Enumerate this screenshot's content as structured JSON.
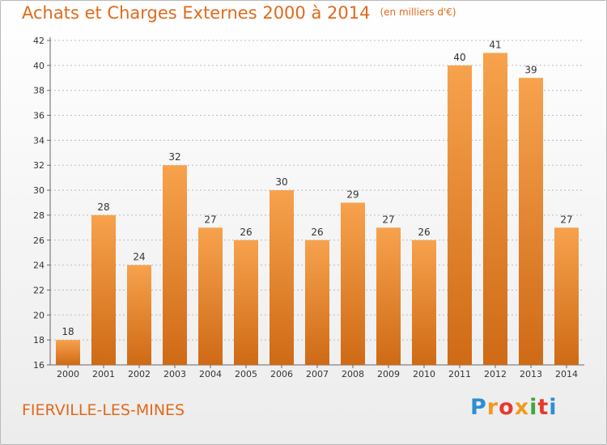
{
  "header": {
    "title": "Achats et Charges Externes 2000 à 2014",
    "unit": "(en milliers d'€)"
  },
  "footer": {
    "commune": "FIERVILLE-LES-MINES",
    "logo_letters": [
      "P",
      "r",
      "o",
      "x",
      "i",
      "t",
      "i"
    ],
    "logo_colors": [
      "#2a8fd6",
      "#f39a1d",
      "#e63a2e",
      "#f39a1d",
      "#3fa73b",
      "#e63a2e",
      "#2a8fd6"
    ]
  },
  "colors": {
    "bar_top": "#f7a24d",
    "bar_bottom": "#cf6a15",
    "title": "#e06a1b",
    "axis_text": "#333333",
    "grid": "#bbbbbb"
  },
  "chart_data": {
    "type": "bar",
    "title": "Achats et Charges Externes 2000 à 2014",
    "subtitle": "(en milliers d'€)",
    "xlabel": "",
    "ylabel": "",
    "categories": [
      "2000",
      "2001",
      "2002",
      "2003",
      "2004",
      "2005",
      "2006",
      "2007",
      "2008",
      "2009",
      "2010",
      "2011",
      "2012",
      "2013",
      "2014"
    ],
    "values": [
      18,
      28,
      24,
      32,
      27,
      26,
      30,
      26,
      29,
      27,
      26,
      40,
      41,
      39,
      27
    ],
    "ylim": [
      16,
      42
    ],
    "yticks": [
      16,
      18,
      20,
      22,
      24,
      26,
      28,
      30,
      32,
      34,
      36,
      38,
      40,
      42
    ],
    "grid": true,
    "legend": "none"
  }
}
